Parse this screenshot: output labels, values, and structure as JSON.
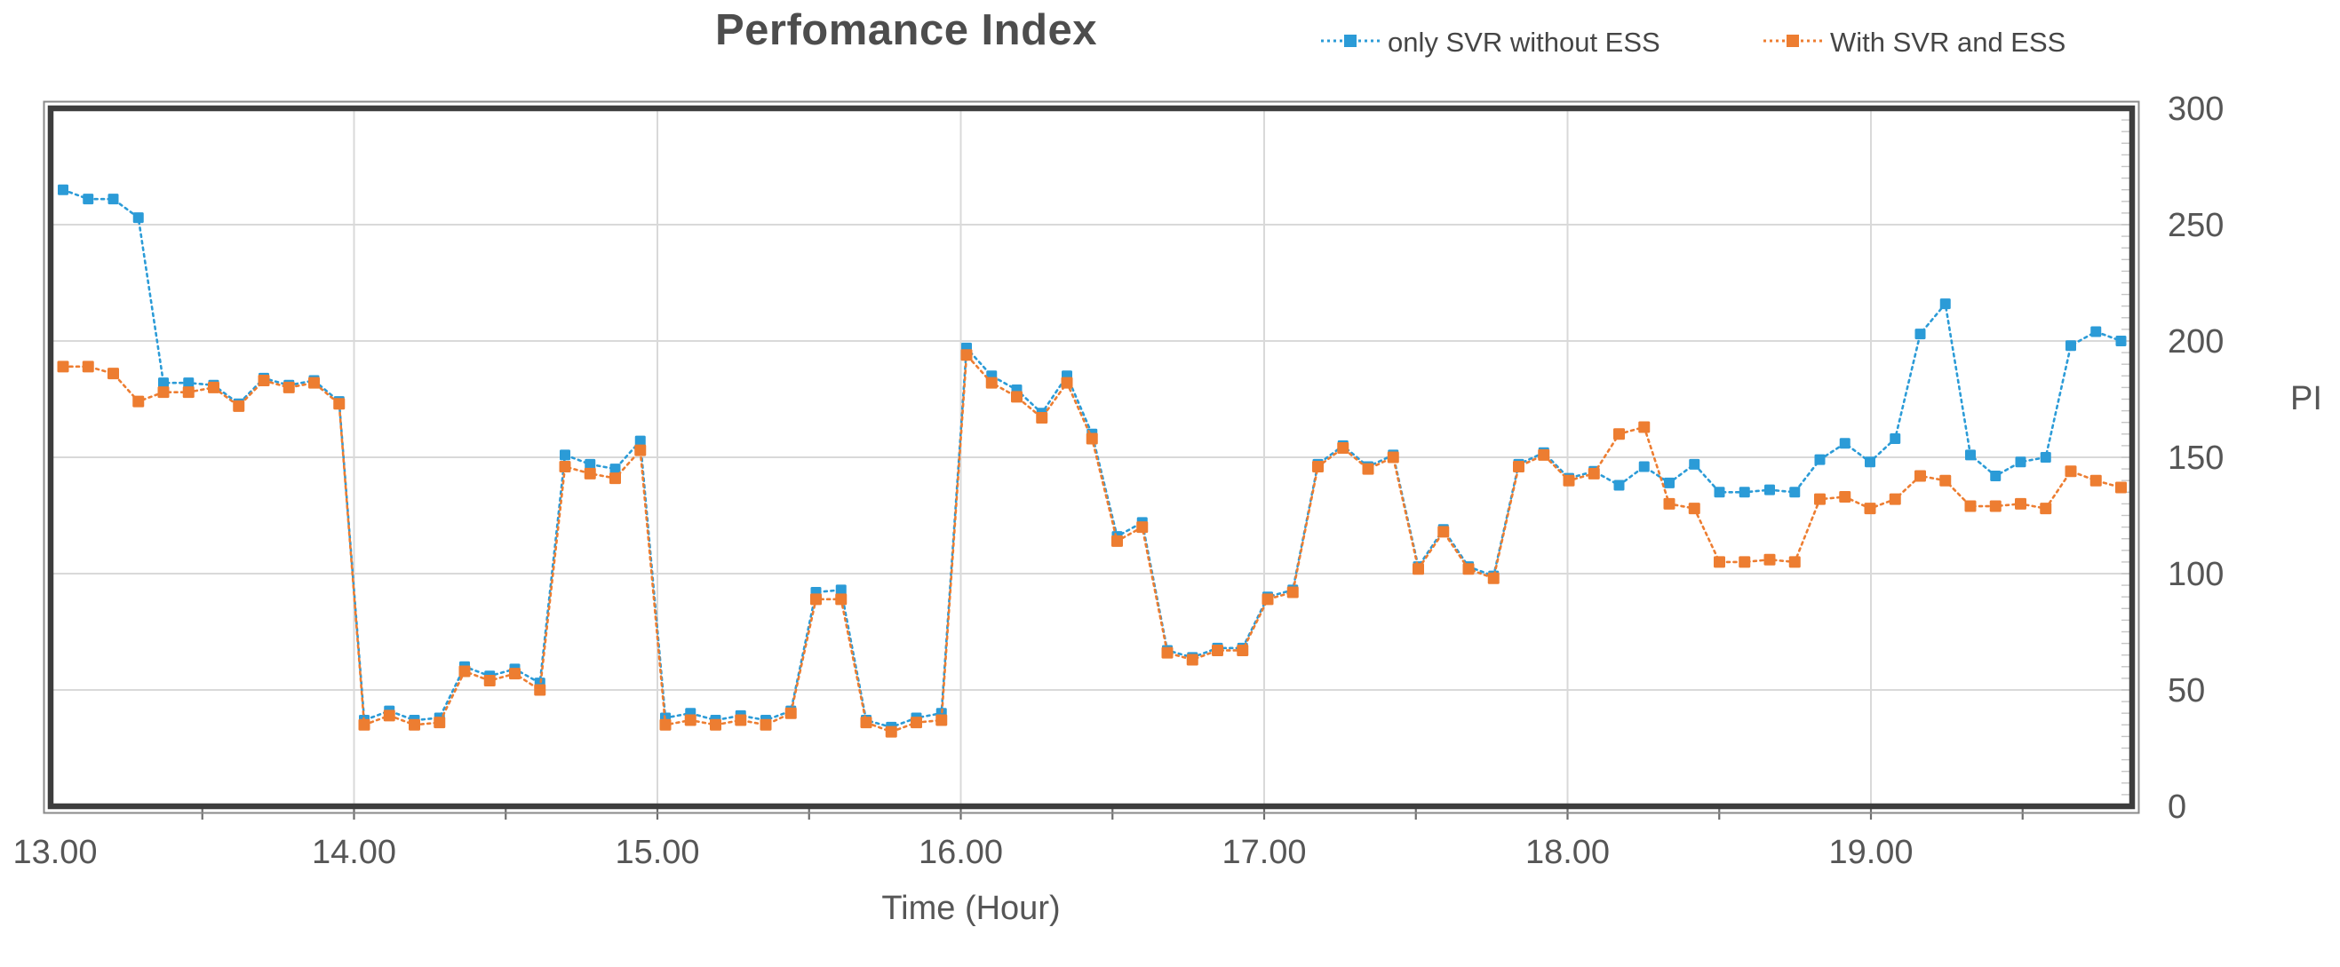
{
  "title": "Perfomance Index",
  "axes": {
    "x_title": "Time (Hour)",
    "y_title": "PI"
  },
  "legend": {
    "position": "top-right",
    "items": [
      {
        "label": "only SVR without ESS",
        "color": "#2B9BD7"
      },
      {
        "label": "With SVR and ESS",
        "color": "#ED7D31"
      }
    ]
  },
  "colors": {
    "background": "#FFFFFF",
    "gridline": "#D9D9D9",
    "plot_border": "#3D3D3D",
    "plot_border_outer": "#8A8A8A",
    "minor_tick": "#C6C6C6",
    "axis_tick": "#6E6E6E",
    "tick_text": "#565656",
    "title_text": "#4D4D4D"
  },
  "chart_data": {
    "type": "line",
    "title": "Perfomance Index",
    "xlabel": "Time (Hour)",
    "ylabel": "PI",
    "line_style": "dotted",
    "marker": "square",
    "grid": true,
    "legend_position": "top-right",
    "ylim": [
      0,
      300
    ],
    "y_major_step": 50,
    "y_minor_step": 5,
    "y_tick_labels": [
      "0",
      "50",
      "100",
      "150",
      "200",
      "250",
      "300"
    ],
    "x_start_hour": 13.0,
    "x_step_minutes": 5,
    "x_major_step_hours": 1.0,
    "x_minor_step_hours": 0.5,
    "xlim_hours": [
      13.0,
      19.87
    ],
    "x_tick_labels": [
      "13.00",
      "14.00",
      "15.00",
      "16.00",
      "17.00",
      "18.00",
      "19.00"
    ],
    "x_tick_values": [
      13,
      14,
      15,
      16,
      17,
      18,
      19
    ],
    "series": [
      {
        "name": "only SVR without ESS",
        "color": "#2B9BD7",
        "values": [
          265,
          261,
          261,
          253,
          182,
          182,
          181,
          173,
          184,
          181,
          183,
          174,
          37,
          41,
          37,
          38,
          60,
          56,
          59,
          53,
          151,
          147,
          145,
          157,
          38,
          40,
          37,
          39,
          37,
          41,
          92,
          93,
          37,
          34,
          38,
          40,
          197,
          185,
          179,
          169,
          185,
          160,
          116,
          122,
          67,
          64,
          68,
          68,
          90,
          93,
          147,
          155,
          146,
          151,
          103,
          119,
          103,
          99,
          147,
          152,
          141,
          144,
          138,
          146,
          139,
          147,
          135,
          135,
          136,
          135,
          149,
          156,
          148,
          158,
          203,
          216,
          151,
          142,
          148,
          150,
          198,
          204,
          200
        ]
      },
      {
        "name": "With SVR and ESS",
        "color": "#ED7D31",
        "values": [
          189,
          189,
          186,
          174,
          178,
          178,
          180,
          172,
          183,
          180,
          182,
          173,
          35,
          39,
          35,
          36,
          58,
          54,
          57,
          50,
          146,
          143,
          141,
          153,
          35,
          37,
          35,
          37,
          35,
          40,
          89,
          89,
          36,
          32,
          36,
          37,
          194,
          182,
          176,
          167,
          182,
          158,
          114,
          120,
          66,
          63,
          67,
          67,
          89,
          92,
          146,
          154,
          145,
          150,
          102,
          118,
          102,
          98,
          146,
          151,
          140,
          143,
          160,
          163,
          130,
          128,
          105,
          105,
          106,
          105,
          132,
          133,
          128,
          132,
          142,
          140,
          129,
          129,
          130,
          128,
          144,
          140,
          137
        ]
      }
    ]
  }
}
